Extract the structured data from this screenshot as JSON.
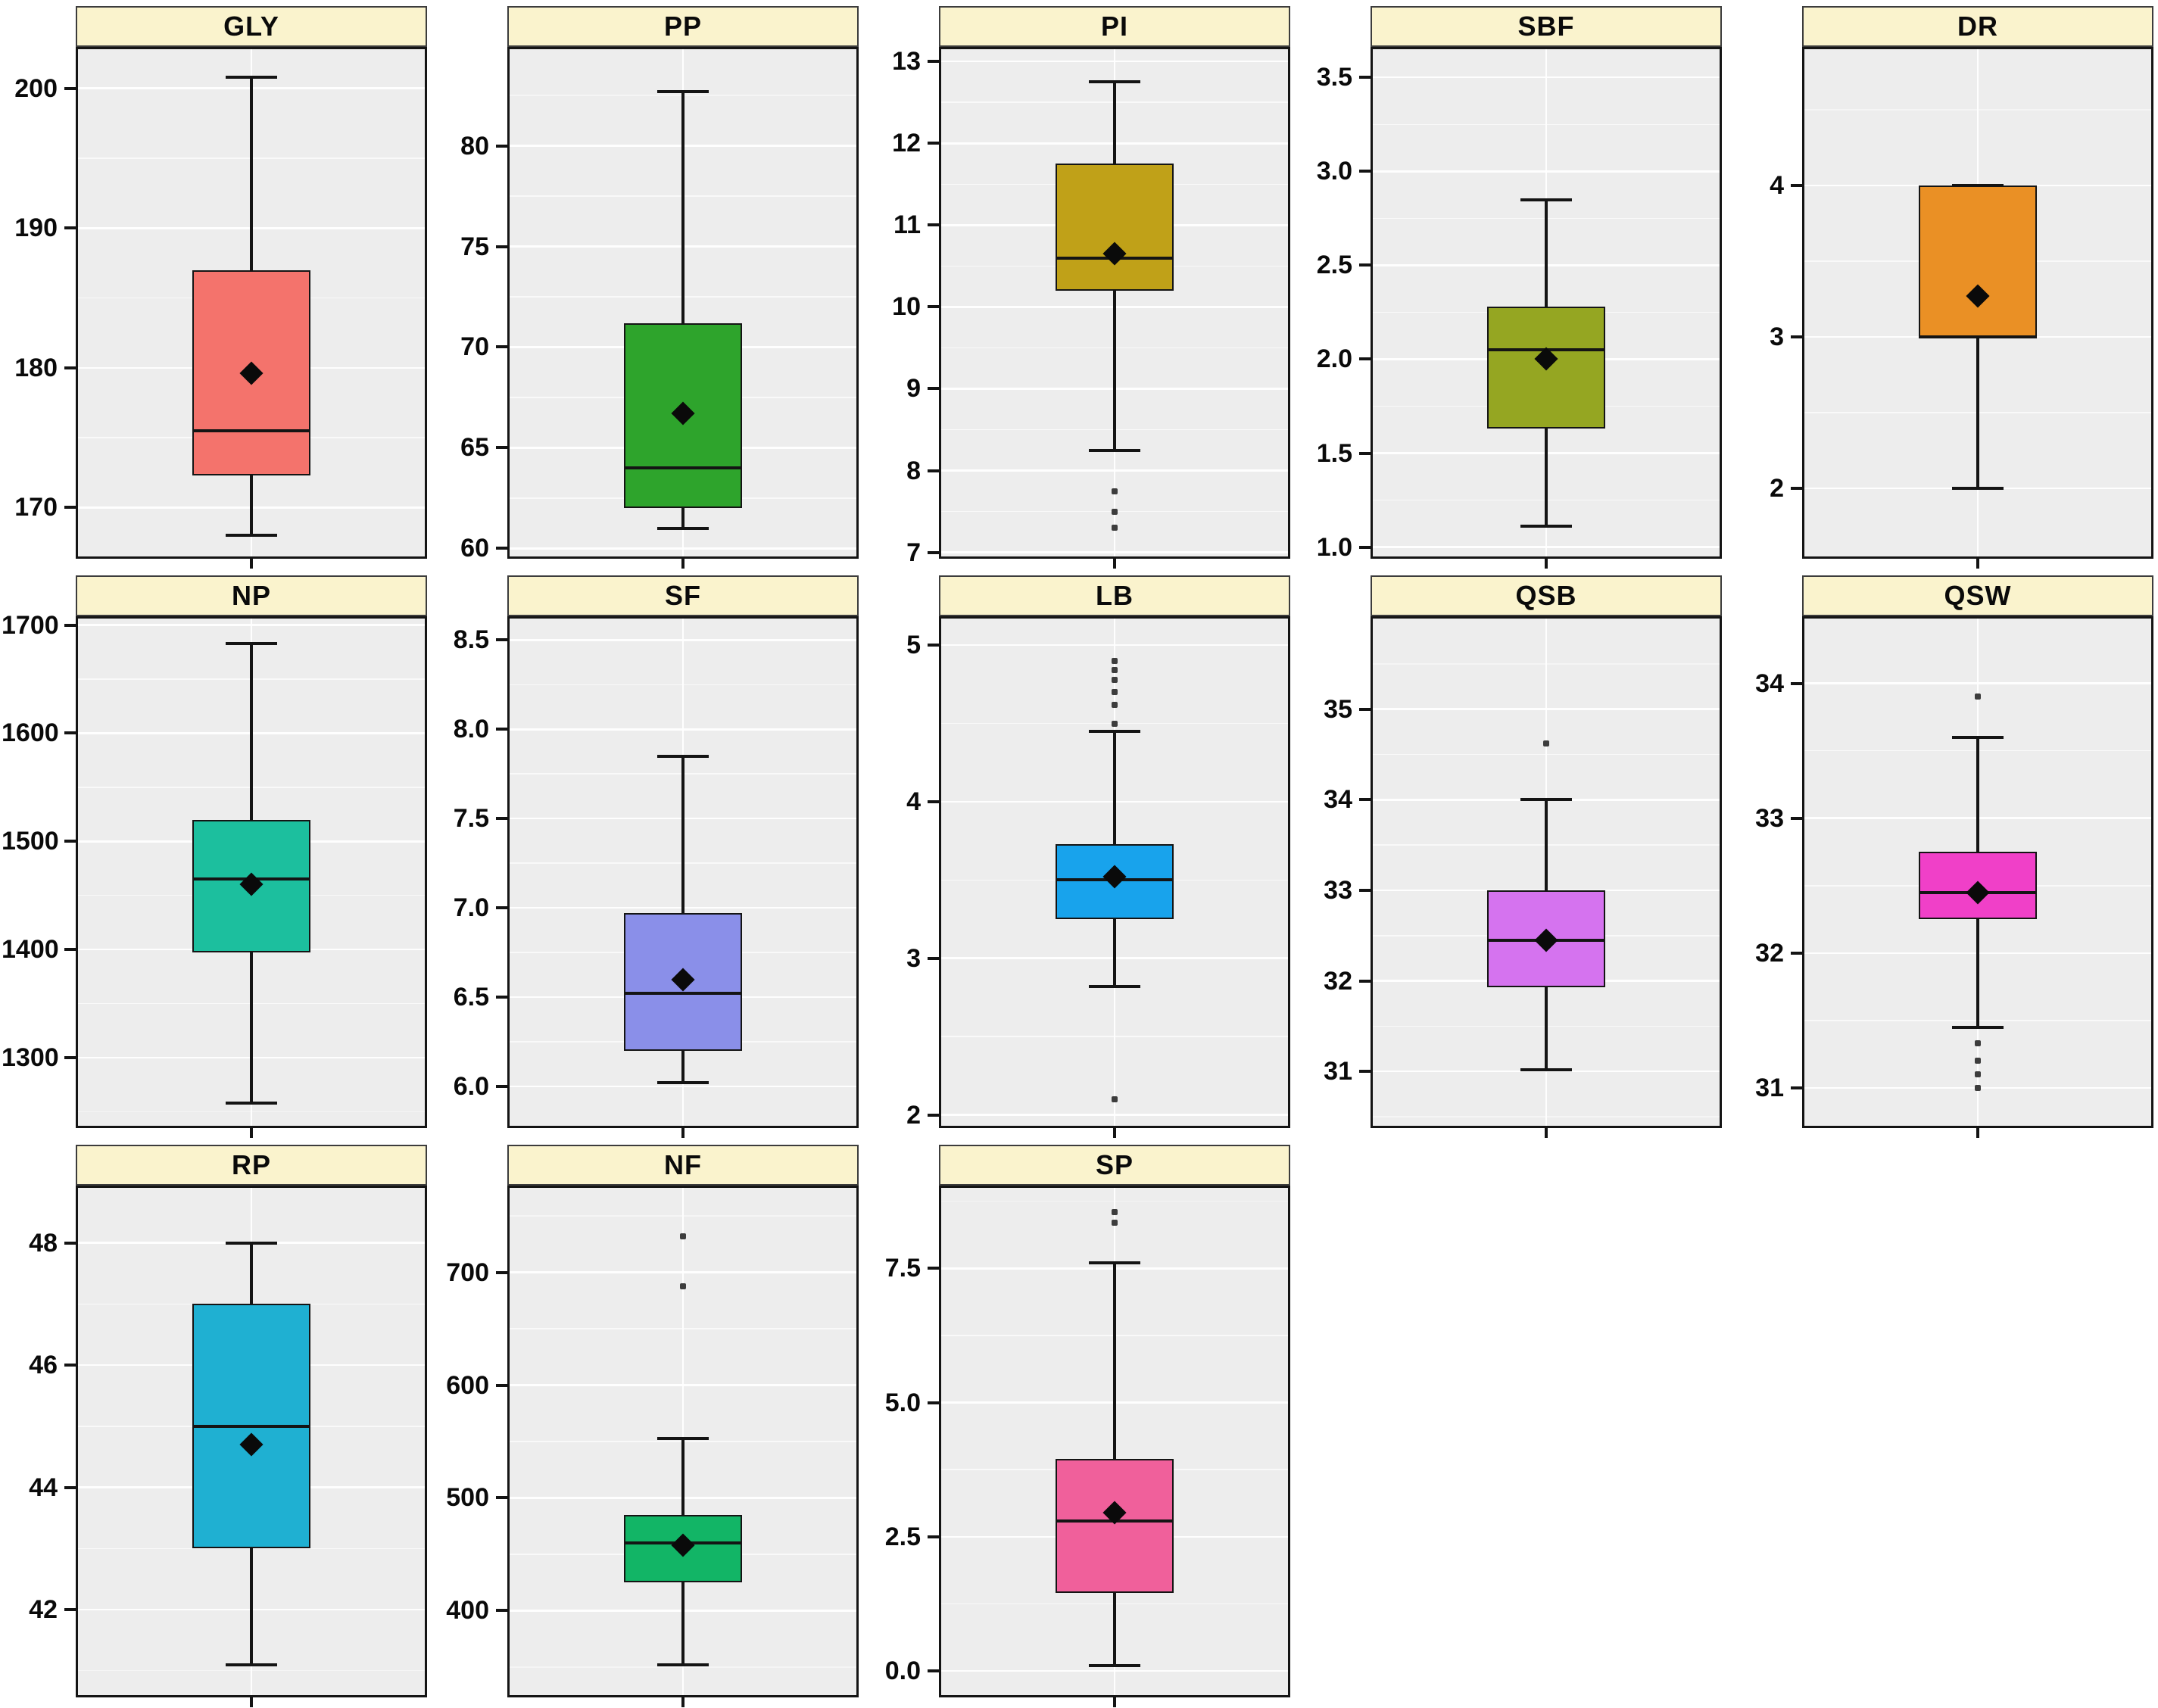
{
  "figure": {
    "description": "Faceted box plots of thirteen traits, one boxplot per panel, with mean diamonds and outlier points",
    "panel_titles": [
      "GLY",
      "PP",
      "PI",
      "SBF",
      "DR",
      "NP",
      "SF",
      "LB",
      "QSB",
      "QSW",
      "RP",
      "NF",
      "SP"
    ]
  },
  "style": {
    "head_bg": "#FAF3CD",
    "head_border": "#3c3c3c",
    "plot_bg": "#EDEDED",
    "grid_major": "rgba(255,255,255,0.92)",
    "grid_minor": "rgba(255,255,255,0.45)",
    "stroke": "#141414",
    "outlier_color": "#3d3d3d"
  },
  "chart_data": [
    {
      "type": "box",
      "title": "GLY",
      "ylim": [
        166.5,
        202.8
      ],
      "y_ticks": [
        {
          "v": 170,
          "label": "170"
        },
        {
          "v": 180,
          "label": "180"
        },
        {
          "v": 190,
          "label": "190"
        },
        {
          "v": 200,
          "label": "200"
        }
      ],
      "box": {
        "whisker_low": 168,
        "q1": 172.3,
        "median": 175.5,
        "q3": 187,
        "whisker_high": 200.8,
        "mean": 179.6
      },
      "outliers": [],
      "color": "#F4736C"
    },
    {
      "type": "box",
      "title": "PP",
      "ylim": [
        59.6,
        84.8
      ],
      "y_ticks": [
        {
          "v": 60,
          "label": "60"
        },
        {
          "v": 65,
          "label": "65"
        },
        {
          "v": 70,
          "label": "70"
        },
        {
          "v": 75,
          "label": "75"
        },
        {
          "v": 80,
          "label": "80"
        }
      ],
      "box": {
        "whisker_low": 61,
        "q1": 62,
        "median": 64,
        "q3": 71.2,
        "whisker_high": 82.7,
        "mean": 66.7
      },
      "outliers": [],
      "color": "#2EA42C"
    },
    {
      "type": "box",
      "title": "PI",
      "ylim": [
        6.95,
        13.15
      ],
      "y_ticks": [
        {
          "v": 7,
          "label": "7"
        },
        {
          "v": 8,
          "label": "8"
        },
        {
          "v": 9,
          "label": "9"
        },
        {
          "v": 10,
          "label": "10"
        },
        {
          "v": 11,
          "label": "11"
        },
        {
          "v": 12,
          "label": "12"
        },
        {
          "v": 13,
          "label": "13"
        }
      ],
      "box": {
        "whisker_low": 8.25,
        "q1": 10.2,
        "median": 10.6,
        "q3": 11.75,
        "whisker_high": 12.75,
        "mean": 10.65
      },
      "outliers": [
        7.75,
        7.5,
        7.3
      ],
      "color": "#C0A118"
    },
    {
      "type": "box",
      "title": "SBF",
      "ylim": [
        0.95,
        3.65
      ],
      "y_ticks": [
        {
          "v": 1.0,
          "label": "1.0"
        },
        {
          "v": 1.5,
          "label": "1.5"
        },
        {
          "v": 2.0,
          "label": "2.0"
        },
        {
          "v": 2.5,
          "label": "2.5"
        },
        {
          "v": 3.0,
          "label": "3.0"
        },
        {
          "v": 3.5,
          "label": "3.5"
        }
      ],
      "box": {
        "whisker_low": 1.11,
        "q1": 1.63,
        "median": 2.05,
        "q3": 2.28,
        "whisker_high": 2.85,
        "mean": 2.0
      },
      "outliers": [],
      "color": "#95A622"
    },
    {
      "type": "box",
      "title": "DR",
      "ylim": [
        1.55,
        4.9
      ],
      "y_ticks": [
        {
          "v": 2,
          "label": "2"
        },
        {
          "v": 3,
          "label": "3"
        },
        {
          "v": 4,
          "label": "4"
        }
      ],
      "box": {
        "whisker_low": 2,
        "q1": 3,
        "median": 3,
        "q3": 4,
        "whisker_high": 4,
        "mean": 3.27
      },
      "outliers": [],
      "color": "#EA9025"
    },
    {
      "type": "box",
      "title": "NP",
      "ylim": [
        1237,
        1706
      ],
      "y_ticks": [
        {
          "v": 1300,
          "label": "1300"
        },
        {
          "v": 1400,
          "label": "1400"
        },
        {
          "v": 1500,
          "label": "1500"
        },
        {
          "v": 1600,
          "label": "1600"
        },
        {
          "v": 1700,
          "label": "1700"
        }
      ],
      "box": {
        "whisker_low": 1258,
        "q1": 1397,
        "median": 1465,
        "q3": 1520,
        "whisker_high": 1683,
        "mean": 1460
      },
      "outliers": [],
      "color": "#1CBF9E"
    },
    {
      "type": "box",
      "title": "SF",
      "ylim": [
        5.78,
        8.62
      ],
      "y_ticks": [
        {
          "v": 6.0,
          "label": "6.0"
        },
        {
          "v": 6.5,
          "label": "6.5"
        },
        {
          "v": 7.0,
          "label": "7.0"
        },
        {
          "v": 7.5,
          "label": "7.5"
        },
        {
          "v": 8.0,
          "label": "8.0"
        },
        {
          "v": 8.5,
          "label": "8.5"
        }
      ],
      "box": {
        "whisker_low": 6.02,
        "q1": 6.2,
        "median": 6.52,
        "q3": 6.97,
        "whisker_high": 7.85,
        "mean": 6.6
      },
      "outliers": [],
      "color": "#8A8FE9"
    },
    {
      "type": "box",
      "title": "LB",
      "ylim": [
        1.93,
        5.17
      ],
      "y_ticks": [
        {
          "v": 2,
          "label": "2"
        },
        {
          "v": 3,
          "label": "3"
        },
        {
          "v": 4,
          "label": "4"
        },
        {
          "v": 5,
          "label": "5"
        }
      ],
      "box": {
        "whisker_low": 2.82,
        "q1": 3.25,
        "median": 3.5,
        "q3": 3.73,
        "whisker_high": 4.45,
        "mean": 3.52
      },
      "outliers": [
        4.9,
        4.84,
        4.78,
        4.7,
        4.62,
        4.5,
        2.1
      ],
      "color": "#18A3EC"
    },
    {
      "type": "box",
      "title": "QSB",
      "ylim": [
        30.4,
        36.0
      ],
      "y_ticks": [
        {
          "v": 31,
          "label": "31"
        },
        {
          "v": 32,
          "label": "32"
        },
        {
          "v": 33,
          "label": "33"
        },
        {
          "v": 34,
          "label": "34"
        },
        {
          "v": 35,
          "label": "35"
        }
      ],
      "box": {
        "whisker_low": 31.02,
        "q1": 31.93,
        "median": 32.45,
        "q3": 33.0,
        "whisker_high": 34.0,
        "mean": 32.45
      },
      "outliers": [
        34.62
      ],
      "color": "#D573EF"
    },
    {
      "type": "box",
      "title": "QSW",
      "ylim": [
        30.72,
        34.48
      ],
      "y_ticks": [
        {
          "v": 31,
          "label": "31"
        },
        {
          "v": 32,
          "label": "32"
        },
        {
          "v": 33,
          "label": "33"
        },
        {
          "v": 34,
          "label": "34"
        }
      ],
      "box": {
        "whisker_low": 31.45,
        "q1": 32.25,
        "median": 32.45,
        "q3": 32.75,
        "whisker_high": 33.6,
        "mean": 32.45
      },
      "outliers": [
        33.9,
        31.33,
        31.2,
        31.1,
        31.0
      ],
      "color": "#F040C8"
    },
    {
      "type": "box",
      "title": "RP",
      "ylim": [
        40.6,
        48.9
      ],
      "y_ticks": [
        {
          "v": 42,
          "label": "42"
        },
        {
          "v": 44,
          "label": "44"
        },
        {
          "v": 46,
          "label": "46"
        },
        {
          "v": 48,
          "label": "48"
        }
      ],
      "box": {
        "whisker_low": 41.1,
        "q1": 43,
        "median": 45,
        "q3": 47,
        "whisker_high": 48,
        "mean": 44.7
      },
      "outliers": [],
      "color": "#1FB0D2"
    },
    {
      "type": "box",
      "title": "NF",
      "ylim": [
        325,
        775
      ],
      "y_ticks": [
        {
          "v": 400,
          "label": "400"
        },
        {
          "v": 500,
          "label": "500"
        },
        {
          "v": 600,
          "label": "600"
        },
        {
          "v": 700,
          "label": "700"
        }
      ],
      "box": {
        "whisker_low": 352,
        "q1": 425,
        "median": 460,
        "q3": 485,
        "whisker_high": 553,
        "mean": 458
      },
      "outliers": [
        732,
        688
      ],
      "color": "#12B566"
    },
    {
      "type": "box",
      "title": "SP",
      "ylim": [
        -0.45,
        9.0
      ],
      "y_ticks": [
        {
          "v": 0.0,
          "label": "0.0"
        },
        {
          "v": 2.5,
          "label": "2.5"
        },
        {
          "v": 5.0,
          "label": "5.0"
        },
        {
          "v": 7.5,
          "label": "7.5"
        }
      ],
      "box": {
        "whisker_low": 0.1,
        "q1": 1.45,
        "median": 2.8,
        "q3": 3.95,
        "whisker_high": 7.6,
        "mean": 2.95
      },
      "outliers": [
        8.55,
        8.35
      ],
      "color": "#F0609B"
    }
  ]
}
